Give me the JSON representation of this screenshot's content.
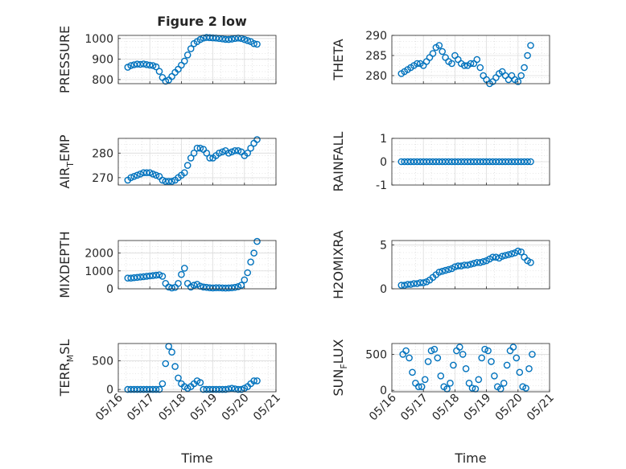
{
  "figure": {
    "title": "Figure 2 low"
  },
  "style": {
    "marker_color": "#0072BD",
    "grid_color": "#cfcfcf",
    "axis_color": "#262626"
  },
  "chart_data": [
    {
      "type": "scatter",
      "ylabel": "PRESSURE",
      "ylabel_parts": [
        "PRESSURE"
      ],
      "ylim": [
        780,
        1015
      ],
      "yticks": [
        800,
        900,
        1000
      ],
      "ytick_labels": [
        "800",
        "900",
        "1000"
      ],
      "xlim": [
        0,
        5
      ],
      "xticks": [
        0,
        1,
        2,
        3,
        4,
        5
      ],
      "xtick_labels": [],
      "grid": true,
      "series": [
        {
          "x": [
            0.3,
            0.4,
            0.5,
            0.6,
            0.7,
            0.8,
            0.9,
            1.0,
            1.1,
            1.2,
            1.3,
            1.4,
            1.5,
            1.6,
            1.7,
            1.8,
            1.9,
            2.0,
            2.1,
            2.2,
            2.3,
            2.4,
            2.5,
            2.6,
            2.7,
            2.8,
            2.9,
            3.0,
            3.1,
            3.2,
            3.3,
            3.4,
            3.5,
            3.6,
            3.7,
            3.8,
            3.9,
            4.0,
            4.1,
            4.2,
            4.3,
            4.4
          ],
          "y": [
            860,
            868,
            872,
            875,
            874,
            876,
            873,
            870,
            868,
            862,
            840,
            810,
            792,
            798,
            815,
            835,
            850,
            870,
            890,
            920,
            950,
            975,
            985,
            995,
            1002,
            1005,
            1004,
            1003,
            1002,
            1000,
            998,
            996,
            995,
            997,
            1000,
            1002,
            1000,
            995,
            990,
            985,
            975,
            972
          ]
        }
      ]
    },
    {
      "type": "scatter",
      "ylabel": "THETA",
      "ylabel_parts": [
        "THETA"
      ],
      "ylim": [
        278,
        290
      ],
      "yticks": [
        280,
        285,
        290
      ],
      "ytick_labels": [
        "280",
        "285",
        "290"
      ],
      "xlim": [
        0,
        5
      ],
      "xticks": [
        0,
        1,
        2,
        3,
        4,
        5
      ],
      "xtick_labels": [],
      "grid": true,
      "series": [
        {
          "x": [
            0.3,
            0.4,
            0.5,
            0.6,
            0.7,
            0.8,
            0.9,
            1.0,
            1.1,
            1.2,
            1.3,
            1.4,
            1.5,
            1.6,
            1.7,
            1.8,
            1.9,
            2.0,
            2.1,
            2.2,
            2.3,
            2.4,
            2.5,
            2.6,
            2.7,
            2.8,
            2.9,
            3.0,
            3.1,
            3.2,
            3.3,
            3.4,
            3.5,
            3.6,
            3.7,
            3.8,
            3.9,
            4.0,
            4.1,
            4.2,
            4.3,
            4.4
          ],
          "y": [
            280.5,
            281,
            281.5,
            282,
            282.5,
            283,
            283,
            282.5,
            283.5,
            284.5,
            285.5,
            287,
            287.5,
            286,
            284.5,
            283.5,
            283,
            285,
            284,
            283,
            282.5,
            282.5,
            283,
            283,
            284,
            282,
            280,
            279,
            278,
            278.5,
            279.5,
            280.5,
            281,
            280,
            279,
            280,
            279,
            278.5,
            280,
            282,
            285,
            287.5
          ]
        }
      ]
    },
    {
      "type": "scatter",
      "ylabel": "AIR_TEMP",
      "ylabel_parts": [
        "AIR",
        "T",
        "EMP"
      ],
      "ylim": [
        267,
        286
      ],
      "yticks": [
        270,
        280
      ],
      "ytick_labels": [
        "270",
        "280"
      ],
      "xlim": [
        0,
        5
      ],
      "xticks": [
        0,
        1,
        2,
        3,
        4,
        5
      ],
      "xtick_labels": [],
      "grid": true,
      "series": [
        {
          "x": [
            0.3,
            0.4,
            0.5,
            0.6,
            0.7,
            0.8,
            0.9,
            1.0,
            1.1,
            1.2,
            1.3,
            1.4,
            1.5,
            1.6,
            1.7,
            1.8,
            1.9,
            2.0,
            2.1,
            2.2,
            2.3,
            2.4,
            2.5,
            2.6,
            2.7,
            2.8,
            2.9,
            3.0,
            3.1,
            3.2,
            3.3,
            3.4,
            3.5,
            3.6,
            3.7,
            3.8,
            3.9,
            4.0,
            4.1,
            4.2,
            4.3,
            4.4
          ],
          "y": [
            269,
            270,
            270.5,
            271,
            271.5,
            272,
            272,
            272,
            271.5,
            271,
            270.5,
            269,
            268.5,
            268.5,
            268.5,
            269,
            270,
            271,
            272,
            275,
            278,
            280,
            282,
            282,
            281.5,
            280,
            278,
            278,
            279,
            280,
            280.5,
            281,
            280,
            280.5,
            281,
            281,
            280.5,
            279,
            280,
            282,
            284,
            285.5
          ]
        }
      ]
    },
    {
      "type": "scatter",
      "ylabel": "RAINFALL",
      "ylabel_parts": [
        "RAINFALL"
      ],
      "ylim": [
        -1,
        1
      ],
      "yticks": [
        -1,
        0,
        1
      ],
      "ytick_labels": [
        "-1",
        "0",
        "1"
      ],
      "xlim": [
        0,
        5
      ],
      "xticks": [
        0,
        1,
        2,
        3,
        4,
        5
      ],
      "xtick_labels": [],
      "grid": true,
      "series": [
        {
          "x": [
            0.3,
            0.4,
            0.5,
            0.6,
            0.7,
            0.8,
            0.9,
            1.0,
            1.1,
            1.2,
            1.3,
            1.4,
            1.5,
            1.6,
            1.7,
            1.8,
            1.9,
            2.0,
            2.1,
            2.2,
            2.3,
            2.4,
            2.5,
            2.6,
            2.7,
            2.8,
            2.9,
            3.0,
            3.1,
            3.2,
            3.3,
            3.4,
            3.5,
            3.6,
            3.7,
            3.8,
            3.9,
            4.0,
            4.1,
            4.2,
            4.3,
            4.4
          ],
          "y": [
            0,
            0,
            0,
            0,
            0,
            0,
            0,
            0,
            0,
            0,
            0,
            0,
            0,
            0,
            0,
            0,
            0,
            0,
            0,
            0,
            0,
            0,
            0,
            0,
            0,
            0,
            0,
            0,
            0,
            0,
            0,
            0,
            0,
            0,
            0,
            0,
            0,
            0,
            0,
            0,
            0,
            0
          ]
        }
      ]
    },
    {
      "type": "scatter",
      "ylabel": "MIXDEPTH",
      "ylabel_parts": [
        "MIXDEPTH"
      ],
      "ylim": [
        0,
        2700
      ],
      "yticks": [
        0,
        1000,
        2000
      ],
      "ytick_labels": [
        "0",
        "1000",
        "2000"
      ],
      "xlim": [
        0,
        5
      ],
      "xticks": [
        0,
        1,
        2,
        3,
        4,
        5
      ],
      "xtick_labels": [],
      "grid": true,
      "series": [
        {
          "x": [
            0.3,
            0.4,
            0.5,
            0.6,
            0.7,
            0.8,
            0.9,
            1.0,
            1.1,
            1.2,
            1.3,
            1.4,
            1.5,
            1.6,
            1.7,
            1.8,
            1.9,
            2.0,
            2.1,
            2.2,
            2.3,
            2.4,
            2.5,
            2.6,
            2.7,
            2.8,
            2.9,
            3.0,
            3.1,
            3.2,
            3.3,
            3.4,
            3.5,
            3.6,
            3.7,
            3.8,
            3.9,
            4.0,
            4.1,
            4.2,
            4.3,
            4.4
          ],
          "y": [
            600,
            600,
            620,
            640,
            660,
            680,
            700,
            720,
            740,
            760,
            780,
            700,
            300,
            100,
            50,
            80,
            300,
            800,
            1150,
            300,
            100,
            200,
            250,
            150,
            100,
            80,
            60,
            50,
            60,
            60,
            50,
            40,
            50,
            60,
            80,
            120,
            200,
            500,
            900,
            1500,
            2000,
            2650
          ]
        }
      ]
    },
    {
      "type": "scatter",
      "ylabel": "H2OMIXRA",
      "ylabel_parts": [
        "H2OMIXRA"
      ],
      "ylim": [
        0,
        5.5
      ],
      "yticks": [
        0,
        5
      ],
      "ytick_labels": [
        "0",
        "5"
      ],
      "xlim": [
        0,
        5
      ],
      "xticks": [
        0,
        1,
        2,
        3,
        4,
        5
      ],
      "xtick_labels": [],
      "grid": true,
      "series": [
        {
          "x": [
            0.3,
            0.4,
            0.5,
            0.6,
            0.7,
            0.8,
            0.9,
            1.0,
            1.1,
            1.2,
            1.3,
            1.4,
            1.5,
            1.6,
            1.7,
            1.8,
            1.9,
            2.0,
            2.1,
            2.2,
            2.3,
            2.4,
            2.5,
            2.6,
            2.7,
            2.8,
            2.9,
            3.0,
            3.1,
            3.2,
            3.3,
            3.4,
            3.5,
            3.6,
            3.7,
            3.8,
            3.9,
            4.0,
            4.1,
            4.2,
            4.3,
            4.4
          ],
          "y": [
            0.4,
            0.4,
            0.5,
            0.5,
            0.6,
            0.6,
            0.7,
            0.7,
            0.8,
            1.0,
            1.3,
            1.6,
            1.9,
            2.0,
            2.1,
            2.2,
            2.3,
            2.5,
            2.6,
            2.6,
            2.7,
            2.7,
            2.8,
            2.9,
            3.0,
            3.0,
            3.1,
            3.2,
            3.4,
            3.6,
            3.6,
            3.5,
            3.7,
            3.8,
            3.9,
            4.0,
            4.1,
            4.3,
            4.2,
            3.6,
            3.2,
            3.0
          ]
        }
      ]
    },
    {
      "type": "scatter",
      "ylabel": "TERR_MSL",
      "ylabel_parts": [
        "TERR",
        "M",
        "SL"
      ],
      "ylim": [
        -40,
        800
      ],
      "yticks": [
        0,
        500
      ],
      "ytick_labels": [
        "0",
        "500"
      ],
      "xlim": [
        0,
        5
      ],
      "xticks": [
        0,
        1,
        2,
        3,
        4,
        5
      ],
      "xtick_labels": [
        "05/16",
        "05/17",
        "05/18",
        "05/19",
        "05/20",
        "05/21"
      ],
      "xlabel": "Time",
      "grid": true,
      "series": [
        {
          "x": [
            0.3,
            0.4,
            0.5,
            0.6,
            0.7,
            0.8,
            0.9,
            1.0,
            1.1,
            1.2,
            1.3,
            1.4,
            1.5,
            1.6,
            1.7,
            1.8,
            1.9,
            2.0,
            2.1,
            2.2,
            2.3,
            2.4,
            2.5,
            2.6,
            2.7,
            2.8,
            2.9,
            3.0,
            3.1,
            3.2,
            3.3,
            3.4,
            3.5,
            3.6,
            3.7,
            3.8,
            3.9,
            4.0,
            4.1,
            4.2,
            4.3,
            4.4
          ],
          "y": [
            0,
            0,
            0,
            0,
            0,
            0,
            0,
            0,
            0,
            0,
            0,
            100,
            450,
            750,
            650,
            400,
            200,
            100,
            50,
            20,
            50,
            100,
            150,
            120,
            0,
            0,
            0,
            0,
            0,
            0,
            0,
            0,
            10,
            20,
            10,
            0,
            0,
            20,
            50,
            100,
            150,
            150
          ]
        }
      ]
    },
    {
      "type": "scatter",
      "ylabel": "SUN_FLUX",
      "ylabel_parts": [
        "SUN",
        "F",
        "LUX"
      ],
      "ylim": [
        -20,
        650
      ],
      "yticks": [
        0,
        500
      ],
      "ytick_labels": [
        "0",
        "500"
      ],
      "xlim": [
        0,
        5
      ],
      "xticks": [
        0,
        1,
        2,
        3,
        4,
        5
      ],
      "xtick_labels": [
        "05/16",
        "05/17",
        "05/18",
        "05/19",
        "05/20",
        "05/21"
      ],
      "xlabel": "Time",
      "grid": true,
      "series": [
        {
          "x": [
            0.35,
            0.45,
            0.55,
            0.65,
            0.75,
            0.85,
            0.95,
            1.05,
            1.15,
            1.25,
            1.35,
            1.45,
            1.55,
            1.65,
            1.75,
            1.85,
            1.95,
            2.05,
            2.15,
            2.25,
            2.35,
            2.45,
            2.55,
            2.65,
            2.75,
            2.85,
            2.95,
            3.05,
            3.15,
            3.25,
            3.35,
            3.45,
            3.55,
            3.65,
            3.75,
            3.85,
            3.95,
            4.05,
            4.15,
            4.25,
            4.35,
            4.45
          ],
          "y": [
            500,
            550,
            450,
            250,
            100,
            50,
            50,
            150,
            400,
            550,
            570,
            450,
            200,
            50,
            20,
            100,
            350,
            550,
            600,
            500,
            300,
            100,
            30,
            20,
            150,
            450,
            570,
            550,
            400,
            200,
            50,
            20,
            100,
            350,
            550,
            600,
            450,
            250,
            50,
            30,
            300,
            500
          ]
        }
      ]
    }
  ]
}
